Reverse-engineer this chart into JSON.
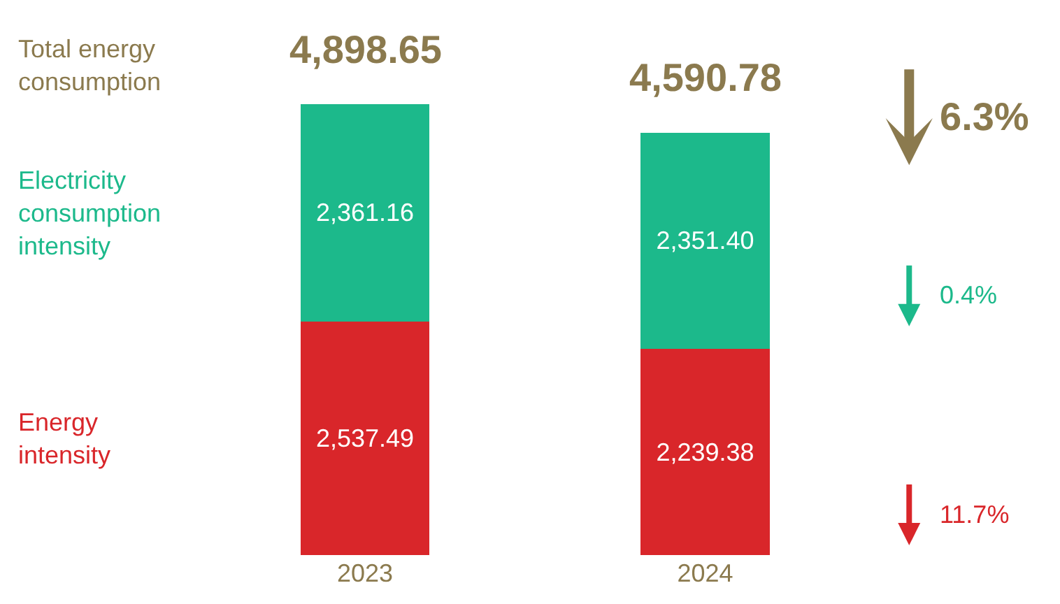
{
  "chart_data": {
    "type": "bar",
    "stacked": true,
    "categories": [
      "2023",
      "2024"
    ],
    "series": [
      {
        "name": "Energy intensity",
        "color": "#d9262a",
        "values": [
          2537.49,
          2239.38
        ],
        "value_labels": [
          "2,537.49",
          "2,239.38"
        ]
      },
      {
        "name": "Electricity consumption intensity",
        "color": "#1cb98b",
        "values": [
          2361.16,
          2351.4
        ],
        "value_labels": [
          "2,361.16",
          "2,351.40"
        ]
      }
    ],
    "totals": [
      "4,898.65",
      "4,590.78"
    ],
    "annotations": [
      "Total energy consumption",
      "6.3%",
      "0.4%",
      "11.7%"
    ],
    "legend": false
  }
}
